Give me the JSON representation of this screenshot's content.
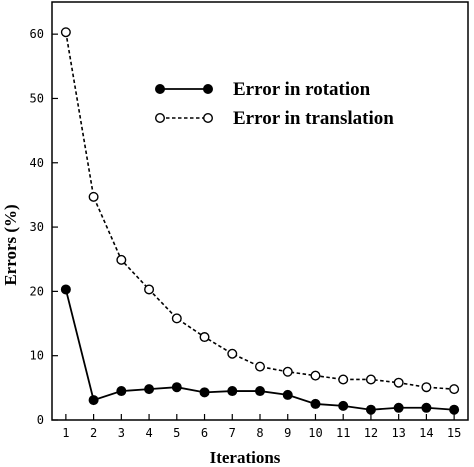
{
  "chart_data": {
    "type": "line",
    "title": "",
    "xlabel": "Iterations",
    "ylabel": "Errors (%)",
    "x": [
      1,
      2,
      3,
      4,
      5,
      6,
      7,
      8,
      9,
      10,
      11,
      12,
      13,
      14,
      15
    ],
    "xlim": [
      0.5,
      15.5
    ],
    "ylim": [
      0,
      65
    ],
    "yticks": [
      0,
      10,
      20,
      30,
      40,
      50,
      60
    ],
    "grid": false,
    "legend_position": "top-right",
    "series": [
      {
        "name": "Error in rotation",
        "style": "solid",
        "marker": "filled-circle",
        "values": [
          20.3,
          3.1,
          4.5,
          4.8,
          5.1,
          4.3,
          4.5,
          4.5,
          3.9,
          2.5,
          2.2,
          1.6,
          1.9,
          1.9,
          1.6
        ]
      },
      {
        "name": "Error in translation",
        "style": "dashed",
        "marker": "open-circle",
        "values": [
          60.3,
          34.7,
          24.9,
          20.3,
          15.8,
          12.9,
          10.3,
          8.3,
          7.5,
          6.9,
          6.3,
          6.3,
          5.8,
          5.1,
          4.8
        ]
      }
    ]
  }
}
